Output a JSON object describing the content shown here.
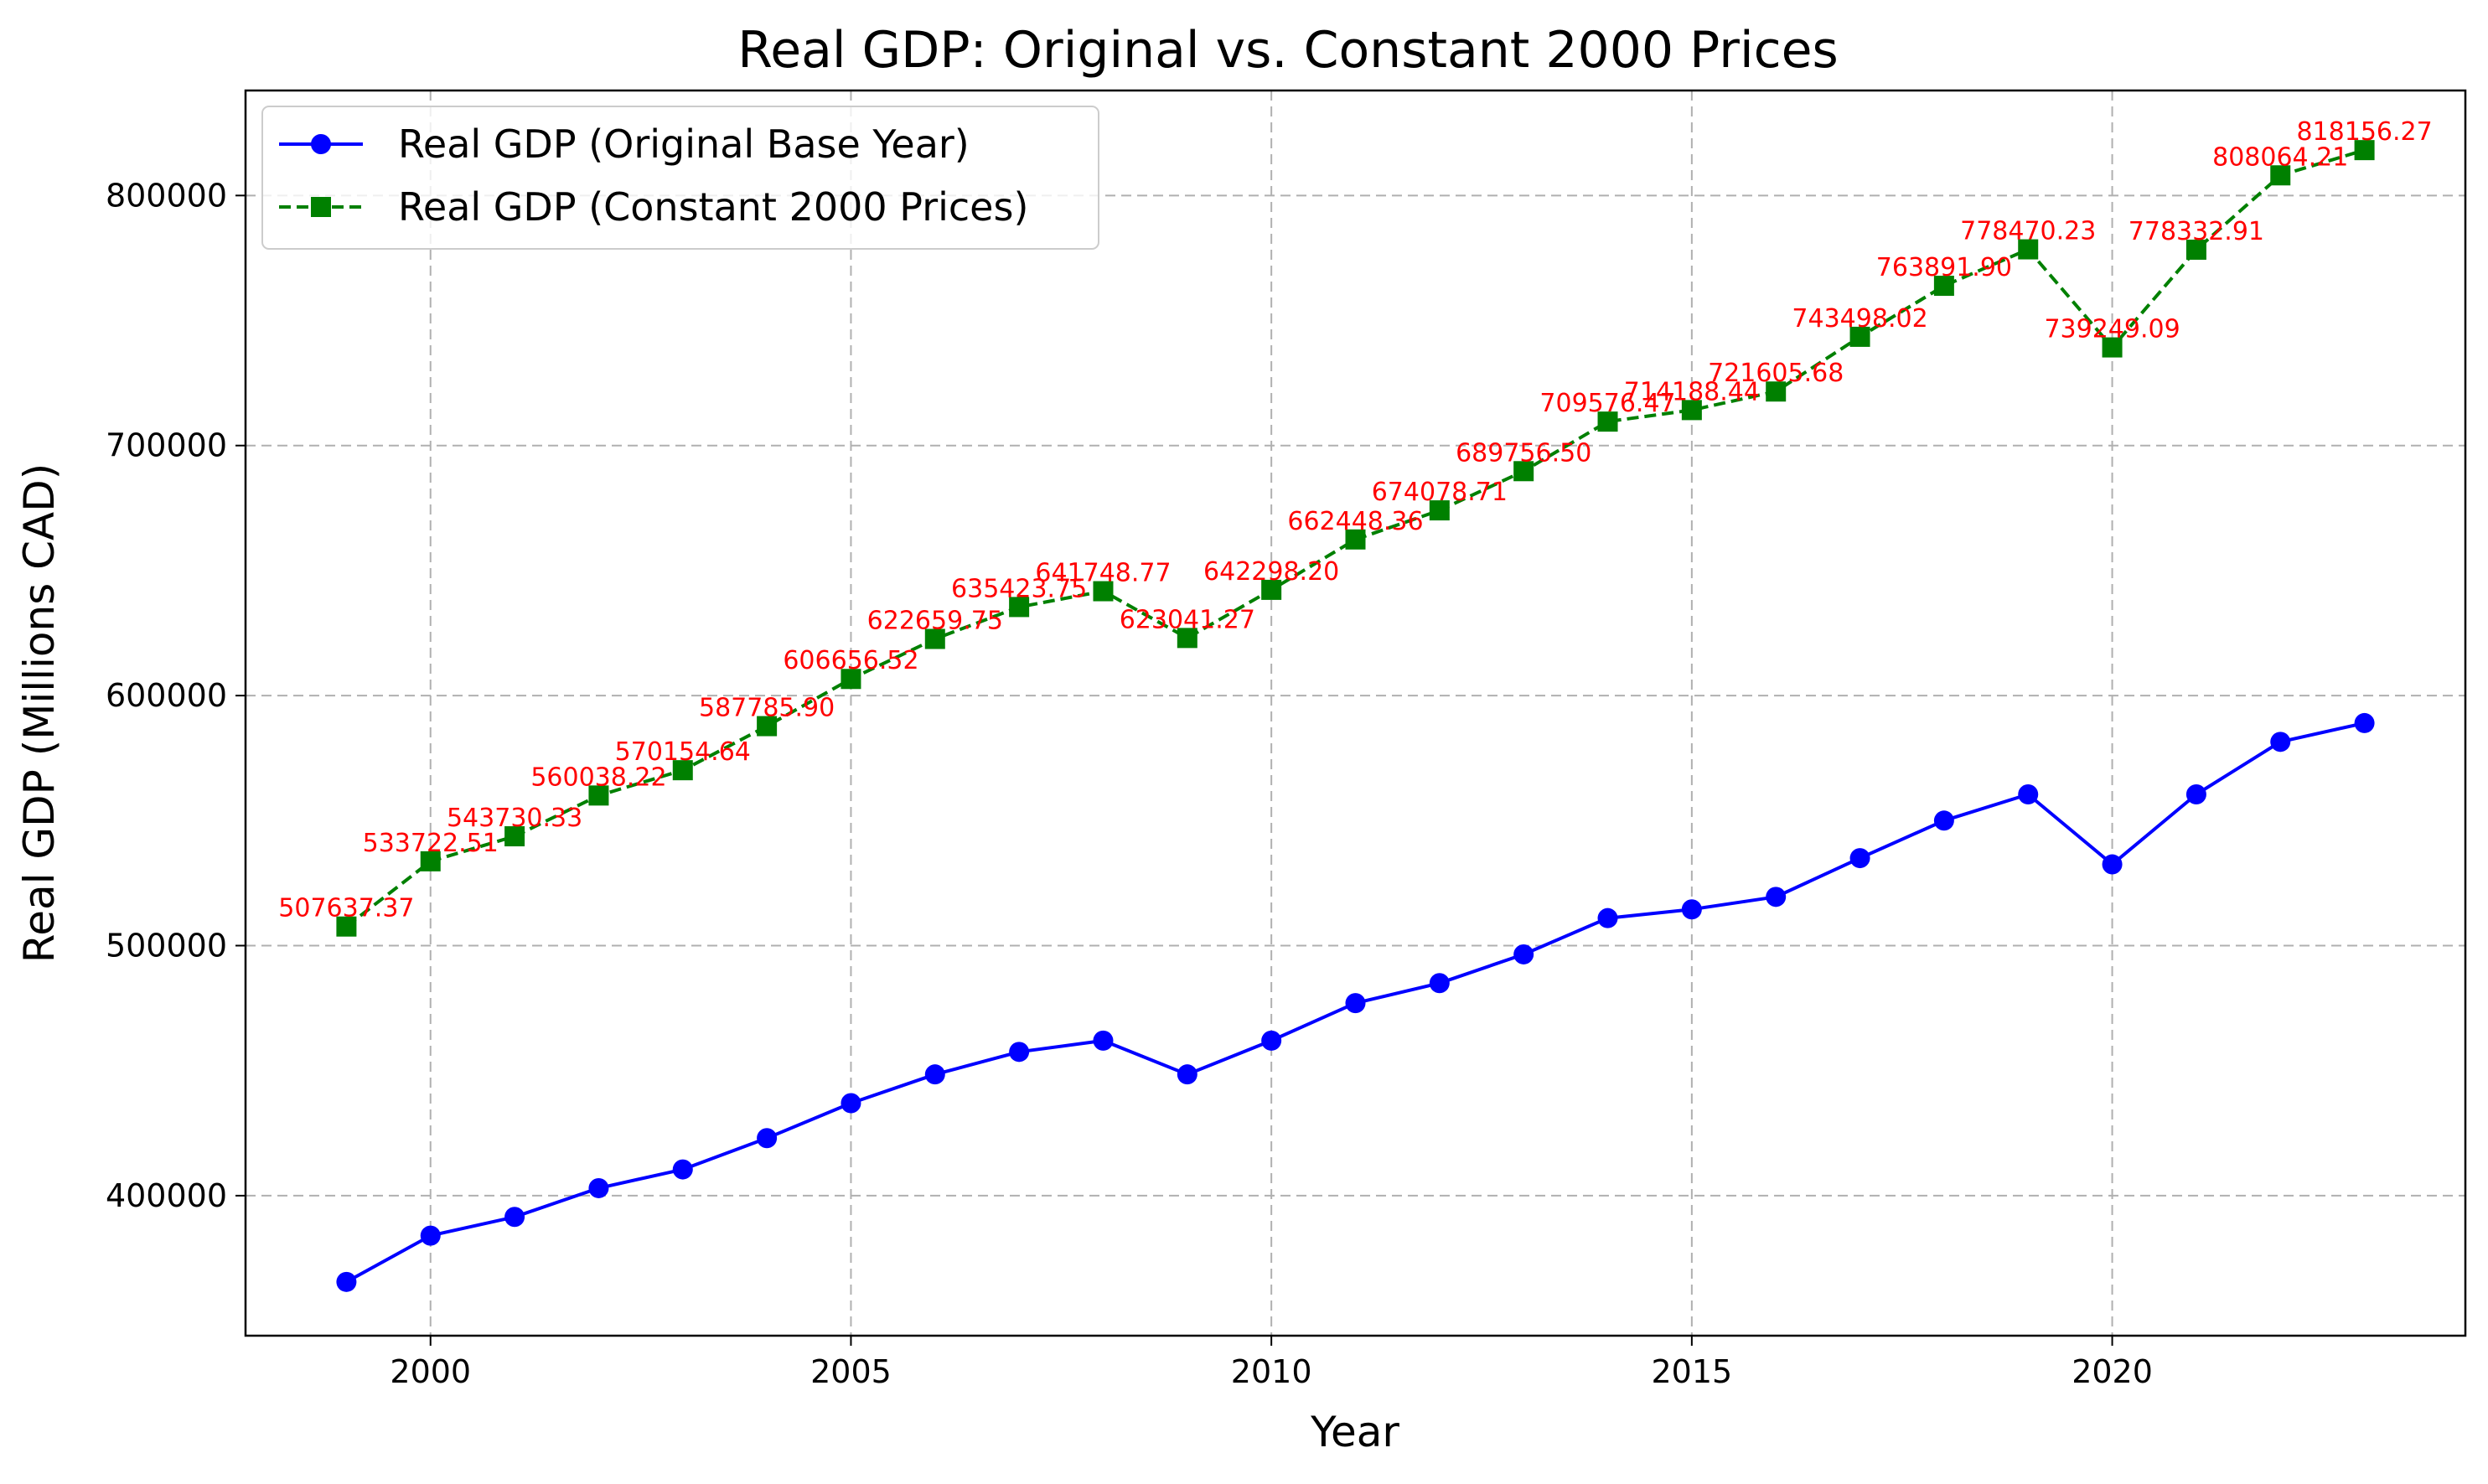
{
  "chart_data": {
    "type": "line",
    "title": "Real GDP: Original vs. Constant 2000 Prices",
    "xlabel": "Year",
    "ylabel": "Real GDP (Millions CAD)",
    "xlim": [
      1997.8,
      2024.2
    ],
    "ylim": [
      344000,
      842000
    ],
    "xticks": [
      2000,
      2005,
      2010,
      2015,
      2020
    ],
    "yticks": [
      400000,
      500000,
      600000,
      700000,
      800000
    ],
    "grid": true,
    "legend_position": "upper-left",
    "x": [
      1999,
      2000,
      2001,
      2002,
      2003,
      2004,
      2005,
      2006,
      2007,
      2008,
      2009,
      2010,
      2011,
      2012,
      2013,
      2014,
      2015,
      2016,
      2017,
      2018,
      2019,
      2020,
      2021,
      2022,
      2023
    ],
    "series": [
      {
        "name": "Real GDP (Original Base Year)",
        "color": "#0000ff",
        "line_style": "solid",
        "marker": "circle",
        "values": [
          365500,
          384000,
          391500,
          403000,
          410500,
          423000,
          437000,
          448500,
          457500,
          462000,
          448500,
          462000,
          477000,
          485000,
          496500,
          511000,
          514500,
          519500,
          535000,
          550000,
          560500,
          532500,
          560500,
          581500,
          589000
        ]
      },
      {
        "name": "Real GDP (Constant 2000 Prices)",
        "color": "#008000",
        "line_style": "dashed",
        "marker": "square",
        "values": [
          507637.37,
          533722.51,
          543730.33,
          560038.22,
          570154.64,
          587785.9,
          606656.52,
          622659.75,
          635423.75,
          641748.77,
          623041.27,
          642298.2,
          662448.36,
          674078.71,
          689756.5,
          709576.47,
          714188.44,
          721605.68,
          743498.02,
          763891.9,
          778470.23,
          739249.09,
          778332.91,
          808064.21,
          818156.27
        ],
        "data_labels": [
          "507637.37",
          "533722.51",
          "543730.33",
          "560038.22",
          "570154.64",
          "587785.90",
          "606656.52",
          "622659.75",
          "635423.75",
          "641748.77",
          "623041.27",
          "642298.20",
          "662448.36",
          "674078.71",
          "689756.50",
          "709576.47",
          "714188.44",
          "721605.68",
          "743498.02",
          "763891.90",
          "778470.23",
          "739249.09",
          "778332.91",
          "808064.21",
          "818156.27"
        ],
        "label_color": "#ff0000"
      }
    ]
  }
}
